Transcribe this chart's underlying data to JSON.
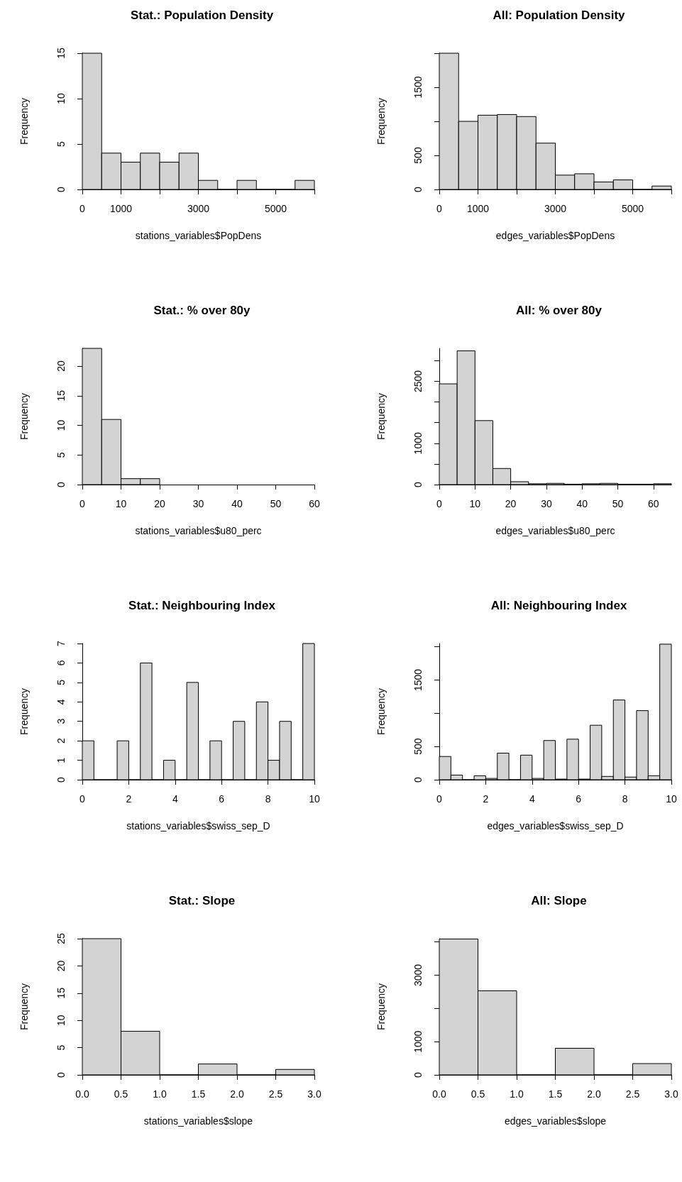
{
  "chart_data": [
    {
      "type": "histogram",
      "title": "Stat.: Population Density",
      "xlabel": "stations_variables$PopDens",
      "ylabel": "Frequency",
      "color": "#d3d3d3",
      "bins": [
        0,
        500,
        1000,
        1500,
        2000,
        2500,
        3000,
        3500,
        4000,
        4500,
        5000,
        5500,
        6000
      ],
      "values": [
        15,
        4,
        3,
        4,
        3,
        4,
        1,
        0,
        1,
        0,
        0,
        1
      ],
      "xlim": [
        0,
        6000
      ],
      "xticks": [
        0,
        1000,
        {
          "value": 2000,
          "label": null
        },
        3000,
        {
          "value": 4000,
          "label": null
        },
        5000,
        {
          "value": 6000,
          "label": null
        }
      ],
      "ylim": [
        0,
        15
      ],
      "yticks": [
        0,
        5,
        10,
        15
      ]
    },
    {
      "type": "histogram",
      "title": "All: Population Density",
      "xlabel": "edges_variables$PopDens",
      "ylabel": "Frequency",
      "color": "#d3d3d3",
      "bins": [
        0,
        500,
        1000,
        1500,
        2000,
        2500,
        3000,
        3500,
        4000,
        4500,
        5000,
        5500,
        6000
      ],
      "values": [
        2000,
        1000,
        1090,
        1100,
        1070,
        680,
        210,
        230,
        110,
        140,
        0,
        50
      ],
      "xlim": [
        0,
        6000
      ],
      "xticks": [
        0,
        1000,
        {
          "value": 2000,
          "label": null
        },
        3000,
        {
          "value": 4000,
          "label": null
        },
        5000,
        {
          "value": 6000,
          "label": null
        }
      ],
      "ylim": [
        0,
        2000
      ],
      "yticks": [
        0,
        500,
        {
          "value": 1000,
          "label": null
        },
        1500,
        {
          "value": 2000,
          "label": null
        }
      ]
    },
    {
      "type": "histogram",
      "title": "Stat.: % over 80y",
      "xlabel": "stations_variables$u80_perc",
      "ylabel": "Frequency",
      "color": "#d3d3d3",
      "bins": [
        0,
        5,
        10,
        15,
        20
      ],
      "values": [
        23,
        11,
        1,
        1
      ],
      "xlim": [
        0,
        60
      ],
      "xticks": [
        0,
        10,
        20,
        30,
        40,
        50,
        60
      ],
      "ylim": [
        0,
        23
      ],
      "yticks": [
        0,
        5,
        10,
        15,
        20
      ]
    },
    {
      "type": "histogram",
      "title": "All: % over 80y",
      "xlabel": "edges_variables$u80_perc",
      "ylabel": "Frequency",
      "color": "#d3d3d3",
      "bins": [
        0,
        5,
        10,
        15,
        20,
        25,
        30,
        35,
        40,
        45,
        50,
        55,
        60,
        65
      ],
      "values": [
        2440,
        3240,
        1550,
        390,
        70,
        20,
        30,
        10,
        20,
        30,
        10,
        10,
        20
      ],
      "xlim": [
        0,
        65
      ],
      "xticks": [
        0,
        10,
        20,
        30,
        40,
        50,
        60
      ],
      "ylim": [
        0,
        3300
      ],
      "yticks": [
        0,
        {
          "value": 500,
          "label": null
        },
        1000,
        {
          "value": 1500,
          "label": null
        },
        {
          "value": 2000,
          "label": null
        },
        2500,
        {
          "value": 3000,
          "label": null
        }
      ]
    },
    {
      "type": "histogram",
      "title": "Stat.: Neighbouring Index",
      "xlabel": "stations_variables$swiss_sep_D",
      "ylabel": "Frequency",
      "color": "#d3d3d3",
      "bins": [
        0,
        0.5,
        1,
        1.5,
        2,
        2.5,
        3,
        3.5,
        4,
        4.5,
        5,
        5.5,
        6,
        6.5,
        7,
        7.5,
        8,
        8.5,
        9,
        9.5,
        10
      ],
      "values": [
        2,
        0,
        0,
        2,
        0,
        6,
        0,
        1,
        0,
        5,
        0,
        2,
        0,
        3,
        0,
        4,
        1,
        3,
        0,
        7
      ],
      "xlim": [
        0,
        10
      ],
      "xticks": [
        0,
        2,
        4,
        6,
        8,
        10
      ],
      "ylim": [
        0,
        7
      ],
      "yticks": [
        0,
        1,
        2,
        3,
        4,
        5,
        6,
        7
      ]
    },
    {
      "type": "histogram",
      "title": "All: Neighbouring Index",
      "xlabel": "edges_variables$swiss_sep_D",
      "ylabel": "Frequency",
      "color": "#d3d3d3",
      "bins": [
        0,
        0.5,
        1,
        1.5,
        2,
        2.5,
        3,
        3.5,
        4,
        4.5,
        5,
        5.5,
        6,
        6.5,
        7,
        7.5,
        8,
        8.5,
        9,
        9.5,
        10
      ],
      "values": [
        350,
        70,
        0,
        60,
        20,
        400,
        0,
        370,
        20,
        590,
        10,
        610,
        10,
        820,
        50,
        1200,
        40,
        1040,
        60,
        2040
      ],
      "xlim": [
        0,
        10
      ],
      "xticks": [
        0,
        2,
        4,
        6,
        8,
        10
      ],
      "ylim": [
        0,
        2050
      ],
      "yticks": [
        0,
        500,
        {
          "value": 1000,
          "label": null
        },
        1500,
        {
          "value": 2000,
          "label": null
        }
      ]
    },
    {
      "type": "histogram",
      "title": "Stat.: Slope",
      "xlabel": "stations_variables$slope",
      "ylabel": "Frequency",
      "color": "#d3d3d3",
      "bins": [
        0,
        0.5,
        1,
        1.5,
        2,
        2.5,
        3
      ],
      "values": [
        25,
        8,
        0,
        2,
        0,
        1
      ],
      "xlim": [
        0,
        3
      ],
      "xticks": [
        {
          "value": 0,
          "label": "0.0"
        },
        0.5,
        {
          "value": 1,
          "label": "1.0"
        },
        1.5,
        {
          "value": 2,
          "label": "2.0"
        },
        2.5,
        {
          "value": 3,
          "label": "3.0"
        }
      ],
      "ylim": [
        0,
        25
      ],
      "yticks": [
        0,
        5,
        10,
        15,
        20,
        25
      ]
    },
    {
      "type": "histogram",
      "title": "All: Slope",
      "xlabel": "edges_variables$slope",
      "ylabel": "Frequency",
      "color": "#d3d3d3",
      "bins": [
        0,
        0.5,
        1,
        1.5,
        2,
        2.5,
        3
      ],
      "values": [
        4090,
        2530,
        0,
        800,
        0,
        340
      ],
      "xlim": [
        0,
        3
      ],
      "xticks": [
        {
          "value": 0,
          "label": "0.0"
        },
        0.5,
        {
          "value": 1,
          "label": "1.0"
        },
        1.5,
        {
          "value": 2,
          "label": "2.0"
        },
        2.5,
        {
          "value": 3,
          "label": "3.0"
        }
      ],
      "ylim": [
        0,
        4100
      ],
      "yticks": [
        0,
        1000,
        {
          "value": 2000,
          "label": null
        },
        3000,
        {
          "value": 4000,
          "label": null
        }
      ]
    }
  ]
}
